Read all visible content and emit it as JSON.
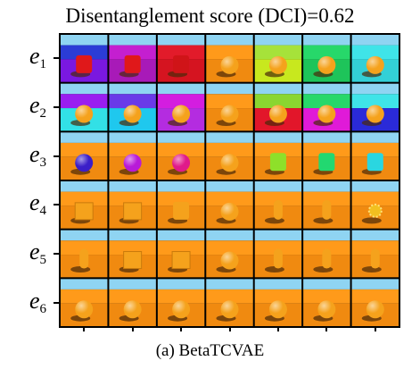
{
  "figure": {
    "title": "Disentanglement score (DCI)=0.62",
    "caption": "(a) BetaTCVAE",
    "rows": [
      {
        "var": "e",
        "sub": "1",
        "cells": [
          {
            "wall": "#2b3cd6",
            "floor": "#7a18e0",
            "shape": "cylinder",
            "obj": "#e0181a"
          },
          {
            "wall": "#c41fd0",
            "floor": "#a81ab8",
            "shape": "cylinder",
            "obj": "#e0181a"
          },
          {
            "wall": "#e21b2a",
            "floor": "#d51420",
            "shape": "cylinder",
            "obj": "#d01418"
          },
          {
            "wall": "#ff9a1a",
            "floor": "#f08a10",
            "shape": "sphere",
            "obj": "#f5a21c"
          },
          {
            "wall": "#a6e23a",
            "floor": "#c8e81e",
            "shape": "sphere",
            "obj": "#f5a21c"
          },
          {
            "wall": "#27d86a",
            "floor": "#1ec45a",
            "shape": "sphere",
            "obj": "#f5a21c"
          },
          {
            "wall": "#3fe4e8",
            "floor": "#33d0d6",
            "shape": "sphere",
            "obj": "#f5a21c"
          }
        ]
      },
      {
        "var": "e",
        "sub": "2",
        "cells": [
          {
            "wall": "#9a1ef0",
            "floor": "#32e0e6",
            "shape": "sphere",
            "obj": "#f5a21c"
          },
          {
            "wall": "#6a3ae8",
            "floor": "#1fc8ee",
            "shape": "sphere",
            "obj": "#f5a21c"
          },
          {
            "wall": "#d41de0",
            "floor": "#b42ce0",
            "shape": "sphere",
            "obj": "#f5a21c"
          },
          {
            "wall": "#ff9a1a",
            "floor": "#f08a10",
            "shape": "sphere",
            "obj": "#f5a21c"
          },
          {
            "wall": "#8ad630",
            "floor": "#e2162a",
            "shape": "sphere",
            "obj": "#f5a21c"
          },
          {
            "wall": "#27d86a",
            "floor": "#e01ad8",
            "shape": "sphere",
            "obj": "#f5a21c"
          },
          {
            "wall": "#3fe4e8",
            "floor": "#2a2ad8",
            "shape": "sphere",
            "obj": "#f5a21c"
          }
        ]
      },
      {
        "var": "e",
        "sub": "3",
        "cells": [
          {
            "wall": "#ff9a1a",
            "floor": "#f08a10",
            "shape": "sphere",
            "obj": "#3a1ec8"
          },
          {
            "wall": "#ff9a1a",
            "floor": "#f08a10",
            "shape": "sphere",
            "obj": "#b81ad8"
          },
          {
            "wall": "#ff9a1a",
            "floor": "#f08a10",
            "shape": "sphere",
            "obj": "#e01a8a"
          },
          {
            "wall": "#ff9a1a",
            "floor": "#f08a10",
            "shape": "sphere",
            "obj": "#f5a21c"
          },
          {
            "wall": "#ff9a1a",
            "floor": "#f08a10",
            "shape": "cylinder",
            "obj": "#8ee02a"
          },
          {
            "wall": "#ff9a1a",
            "floor": "#f08a10",
            "shape": "cylinder",
            "obj": "#22d870"
          },
          {
            "wall": "#ff9a1a",
            "floor": "#f08a10",
            "shape": "cylinder",
            "obj": "#2ad6e0"
          }
        ]
      },
      {
        "var": "e",
        "sub": "4",
        "cells": [
          {
            "wall": "#ff9a1a",
            "floor": "#f08a10",
            "shape": "cube",
            "obj": "#f5a21c"
          },
          {
            "wall": "#ff9a1a",
            "floor": "#f08a10",
            "shape": "cube",
            "obj": "#f5a21c"
          },
          {
            "wall": "#ff9a1a",
            "floor": "#f08a10",
            "shape": "cylinder",
            "obj": "#f5a21c"
          },
          {
            "wall": "#ff9a1a",
            "floor": "#f08a10",
            "shape": "sphere",
            "obj": "#f5a21c"
          },
          {
            "wall": "#ff9a1a",
            "floor": "#f08a10",
            "shape": "capsule",
            "obj": "#f5a21c"
          },
          {
            "wall": "#ff9a1a",
            "floor": "#f08a10",
            "shape": "capsule",
            "obj": "#f5a21c"
          },
          {
            "wall": "#ff9a1a",
            "floor": "#f08a10",
            "shape": "blob",
            "obj": "#f2c020"
          }
        ]
      },
      {
        "var": "e",
        "sub": "5",
        "cells": [
          {
            "wall": "#ff9a1a",
            "floor": "#f08a10",
            "shape": "capsule",
            "obj": "#f5a21c"
          },
          {
            "wall": "#ff9a1a",
            "floor": "#f08a10",
            "shape": "cube",
            "obj": "#f5a21c"
          },
          {
            "wall": "#ff9a1a",
            "floor": "#f08a10",
            "shape": "cube",
            "obj": "#f5a21c"
          },
          {
            "wall": "#ff9a1a",
            "floor": "#f08a10",
            "shape": "sphere",
            "obj": "#f5a21c"
          },
          {
            "wall": "#ff9a1a",
            "floor": "#f08a10",
            "shape": "capsule",
            "obj": "#f5a21c"
          },
          {
            "wall": "#ff9a1a",
            "floor": "#f08a10",
            "shape": "capsule",
            "obj": "#f5a21c"
          },
          {
            "wall": "#ff9a1a",
            "floor": "#f08a10",
            "shape": "capsule",
            "obj": "#f5a21c"
          }
        ]
      },
      {
        "var": "e",
        "sub": "6",
        "cells": [
          {
            "wall": "#ff9a1a",
            "floor": "#f08a10",
            "shape": "sphere",
            "obj": "#f5a21c"
          },
          {
            "wall": "#ff9a1a",
            "floor": "#f08a10",
            "shape": "sphere",
            "obj": "#f5a21c"
          },
          {
            "wall": "#ff9a1a",
            "floor": "#f08a10",
            "shape": "sphere",
            "obj": "#f5a21c"
          },
          {
            "wall": "#ff9a1a",
            "floor": "#f08a10",
            "shape": "sphere",
            "obj": "#f5a21c"
          },
          {
            "wall": "#ff9a1a",
            "floor": "#f08a10",
            "shape": "sphere",
            "obj": "#f5a21c"
          },
          {
            "wall": "#ff9a1a",
            "floor": "#f08a10",
            "shape": "sphere",
            "obj": "#f5a21c"
          },
          {
            "wall": "#ff9a1a",
            "floor": "#f08a10",
            "shape": "sphere",
            "obj": "#f5a21c"
          }
        ]
      }
    ],
    "colors": {
      "sky": "#8fd4f2",
      "shadow": "#4a2a08",
      "frame": "#000000"
    }
  }
}
